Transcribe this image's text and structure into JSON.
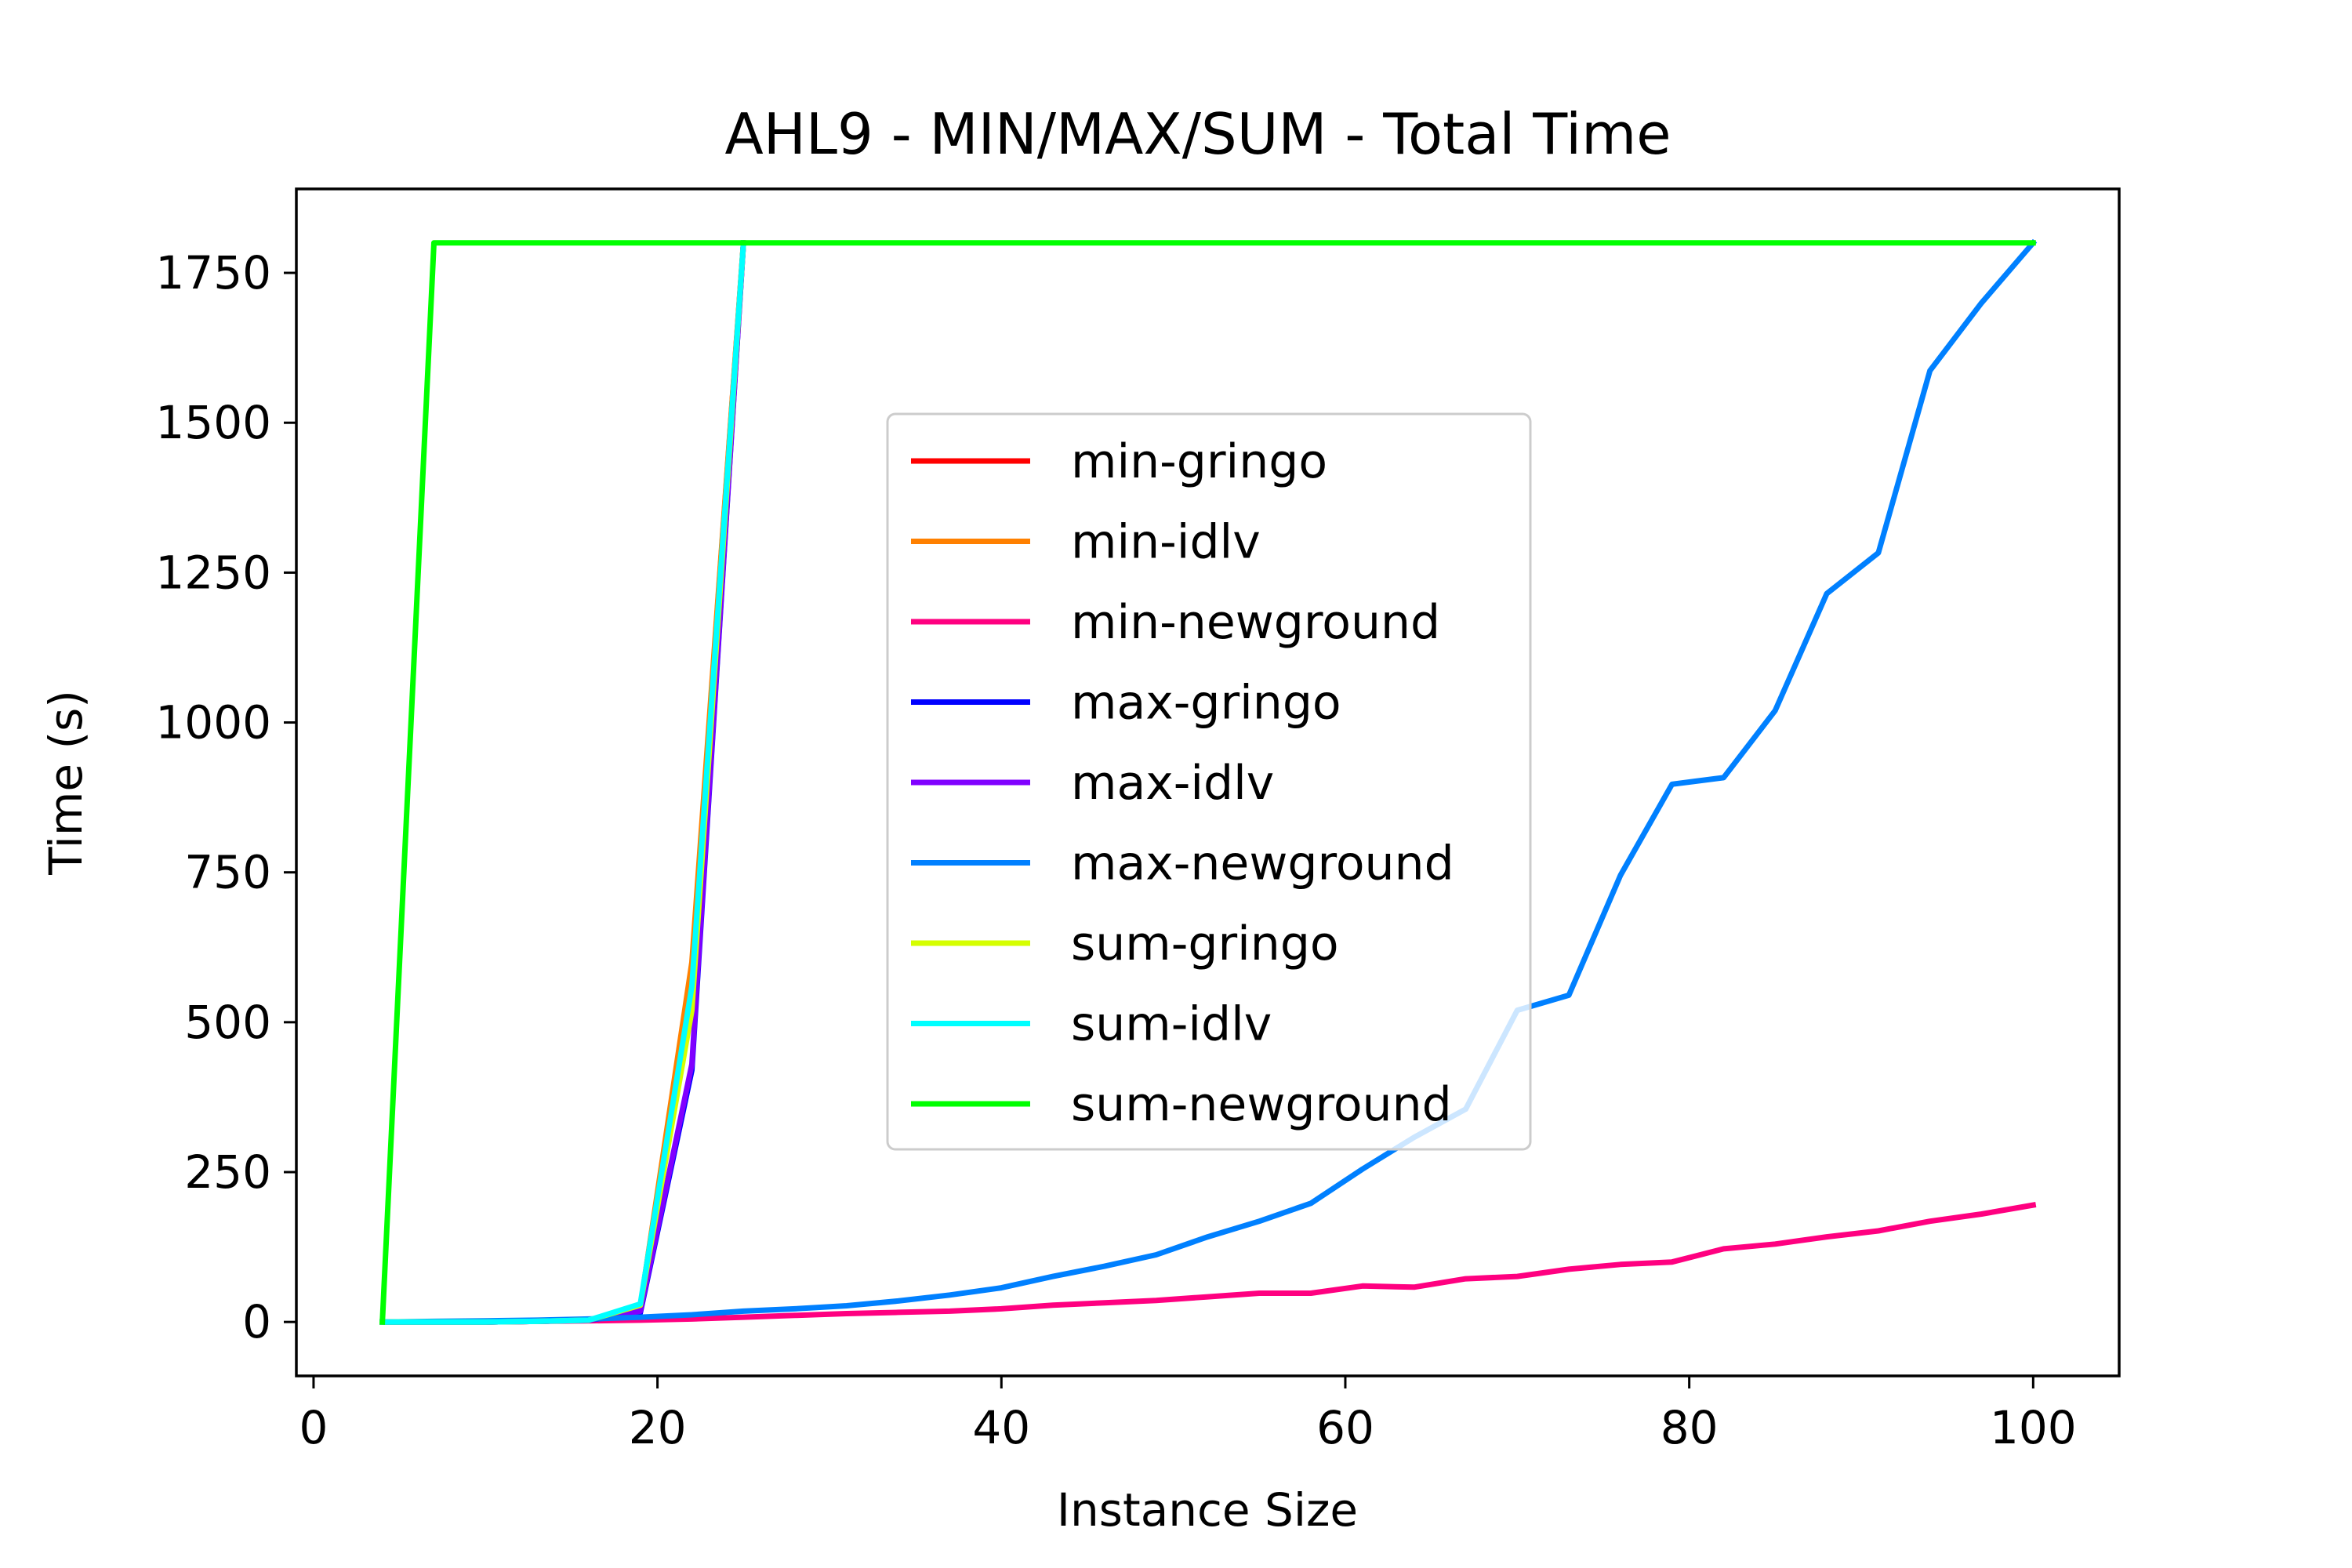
{
  "chart_data": {
    "type": "line",
    "title": "AHL9 - MIN/MAX/SUM - Total Time",
    "xlabel": "Instance Size",
    "ylabel": "Time (s)",
    "xlim": [
      -1,
      105
    ],
    "ylim": [
      -90,
      1890
    ],
    "xticks": [
      0,
      20,
      40,
      60,
      80,
      100
    ],
    "yticks": [
      0,
      250,
      500,
      750,
      1000,
      1250,
      1500,
      1750
    ],
    "grid": false,
    "legend_position": "center",
    "series": [
      {
        "name": "min-gringo",
        "color": "#ff0000",
        "x": [
          4,
          7,
          10,
          13,
          16,
          19,
          22,
          25
        ],
        "y": [
          0,
          0,
          0,
          1,
          3,
          25,
          590,
          1800
        ]
      },
      {
        "name": "min-idlv",
        "color": "#ff8000",
        "x": [
          4,
          7,
          10,
          13,
          16,
          19,
          22,
          25
        ],
        "y": [
          0,
          0,
          0,
          1,
          3,
          25,
          600,
          1800
        ]
      },
      {
        "name": "min-newground",
        "color": "#ff0080",
        "x": [
          4,
          7,
          10,
          13,
          16,
          19,
          22,
          25,
          28,
          31,
          34,
          37,
          40,
          43,
          46,
          49,
          52,
          55,
          58,
          61,
          64,
          67,
          70,
          73,
          76,
          79,
          82,
          85,
          88,
          91,
          94,
          97,
          100
        ],
        "y": [
          0,
          0,
          0,
          1,
          2,
          3,
          5,
          8,
          11,
          14,
          16,
          18,
          22,
          28,
          32,
          36,
          42,
          48,
          48,
          60,
          58,
          72,
          76,
          88,
          96,
          100,
          122,
          130,
          142,
          152,
          168,
          180,
          195
        ]
      },
      {
        "name": "max-gringo",
        "color": "#0000ff",
        "x": [
          4,
          7,
          10,
          13,
          16,
          19,
          22,
          25
        ],
        "y": [
          0,
          0,
          0,
          1,
          3,
          15,
          420,
          1800
        ]
      },
      {
        "name": "max-idlv",
        "color": "#8000ff",
        "x": [
          4,
          7,
          10,
          13,
          16,
          19,
          22,
          25
        ],
        "y": [
          0,
          0,
          0,
          1,
          3,
          18,
          430,
          1800
        ]
      },
      {
        "name": "max-newground",
        "color": "#0080ff",
        "x": [
          4,
          7,
          10,
          13,
          16,
          19,
          22,
          25,
          28,
          31,
          34,
          37,
          40,
          43,
          46,
          49,
          52,
          55,
          58,
          61,
          64,
          67,
          70,
          73,
          76,
          79,
          82,
          85,
          88,
          91,
          94,
          97,
          100
        ],
        "y": [
          0,
          1,
          2,
          3,
          5,
          8,
          12,
          18,
          22,
          27,
          35,
          45,
          57,
          76,
          93,
          112,
          142,
          168,
          198,
          255,
          308,
          355,
          520,
          545,
          745,
          897,
          908,
          1020,
          1215,
          1283,
          1587,
          1700,
          1800
        ]
      },
      {
        "name": "sum-gringo",
        "color": "#d5ff00",
        "x": [
          4,
          7,
          10,
          13,
          16,
          19,
          22,
          25
        ],
        "y": [
          0,
          0,
          0,
          1,
          3,
          28,
          520,
          1800
        ]
      },
      {
        "name": "sum-idlv",
        "color": "#00ffff",
        "x": [
          4,
          7,
          10,
          13,
          16,
          19,
          22,
          25
        ],
        "y": [
          0,
          0,
          0,
          1,
          3,
          30,
          560,
          1800
        ]
      },
      {
        "name": "sum-newground",
        "color": "#00ff00",
        "x": [
          4,
          7,
          100
        ],
        "y": [
          0,
          1800,
          1800
        ]
      }
    ]
  }
}
